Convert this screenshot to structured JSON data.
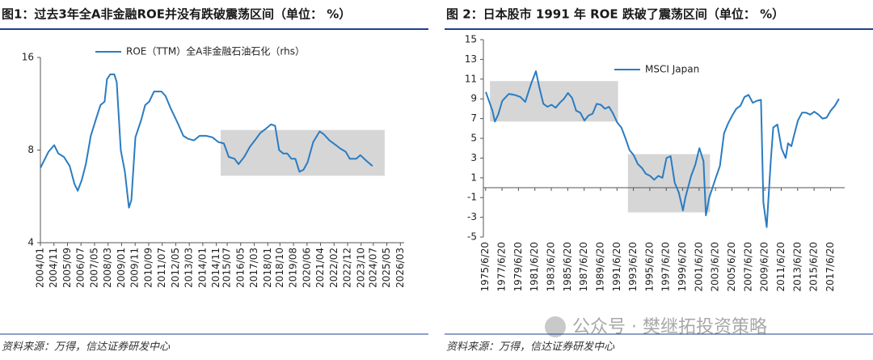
{
  "chart_data": [
    {
      "type": "line",
      "title": "图1：过去3年全A非金融ROE并没有跌破震荡区间（单位： %）",
      "source": "资料来源：万得，信达证券研发中心",
      "log_y": true,
      "legend": "top",
      "xlim": [
        2004,
        2026.4
      ],
      "ylim": [
        4,
        16
      ],
      "yticks": [
        4,
        8,
        16
      ],
      "xticks": [
        {
          "value": 2004.0,
          "label": "2004/01"
        },
        {
          "value": 2004.833,
          "label": "2004/11"
        },
        {
          "value": 2005.667,
          "label": "2005/09"
        },
        {
          "value": 2006.5,
          "label": "2006/07"
        },
        {
          "value": 2007.333,
          "label": "2007/05"
        },
        {
          "value": 2008.167,
          "label": "2008/03"
        },
        {
          "value": 2009.0,
          "label": "2009/01"
        },
        {
          "value": 2009.833,
          "label": "2009/11"
        },
        {
          "value": 2010.667,
          "label": "2010/09"
        },
        {
          "value": 2011.5,
          "label": "2011/07"
        },
        {
          "value": 2012.333,
          "label": "2012/05"
        },
        {
          "value": 2013.167,
          "label": "2013/03"
        },
        {
          "value": 2014.0,
          "label": "2014/01"
        },
        {
          "value": 2014.833,
          "label": "2014/11"
        },
        {
          "value": 2015.5,
          "label": "2015/07"
        },
        {
          "value": 2016.333,
          "label": "2016/05"
        },
        {
          "value": 2017.167,
          "label": "2017/03"
        },
        {
          "value": 2018.0,
          "label": "2018/01"
        },
        {
          "value": 2018.75,
          "label": "2018/10"
        },
        {
          "value": 2019.583,
          "label": "2019/08"
        },
        {
          "value": 2020.417,
          "label": "2020/06"
        },
        {
          "value": 2021.25,
          "label": "2021/04"
        },
        {
          "value": 2022.083,
          "label": "2022/02"
        },
        {
          "value": 2022.917,
          "label": "2022/12"
        },
        {
          "value": 2023.75,
          "label": "2023/10"
        },
        {
          "value": 2024.5,
          "label": "2024/07"
        },
        {
          "value": 2025.333,
          "label": "2025/05"
        },
        {
          "value": 2026.167,
          "label": "2026/03"
        }
      ],
      "highlights": [
        {
          "x": [
            2015.1,
            2025.2
          ],
          "y": [
            6.6,
            9.3
          ]
        }
      ],
      "x": [
        2004.0,
        2004.5,
        2004.85,
        2005.1,
        2005.45,
        2005.8,
        2006.1,
        2006.3,
        2006.55,
        2006.8,
        2007.1,
        2007.45,
        2007.7,
        2007.95,
        2008.1,
        2008.3,
        2008.55,
        2008.7,
        2008.95,
        2009.2,
        2009.45,
        2009.6,
        2009.85,
        2010.2,
        2010.45,
        2010.7,
        2011.0,
        2011.45,
        2011.7,
        2012.0,
        2012.45,
        2012.8,
        2013.1,
        2013.45,
        2013.8,
        2014.2,
        2014.6,
        2014.95,
        2015.3,
        2015.6,
        2015.95,
        2016.2,
        2016.55,
        2016.9,
        2017.2,
        2017.55,
        2017.9,
        2018.2,
        2018.45,
        2018.7,
        2018.95,
        2019.2,
        2019.45,
        2019.7,
        2019.95,
        2020.2,
        2020.45,
        2020.8,
        2021.2,
        2021.45,
        2021.8,
        2022.2,
        2022.45,
        2022.8,
        2023.05,
        2023.45,
        2023.7,
        2024.05,
        2024.45
      ],
      "series": [
        {
          "name": "ROE（TTM）全A非金融石油石化（rhs）",
          "color": "#2a7cc2",
          "values": [
            7.0,
            7.9,
            8.3,
            7.8,
            7.6,
            7.1,
            6.2,
            5.9,
            6.4,
            7.2,
            8.9,
            10.2,
            11.2,
            11.5,
            13.6,
            14.1,
            14.1,
            13.3,
            8.0,
            6.8,
            5.2,
            5.5,
            8.8,
            10.0,
            11.2,
            11.5,
            12.4,
            12.4,
            12.0,
            11.0,
            9.8,
            8.9,
            8.7,
            8.6,
            8.9,
            8.9,
            8.8,
            8.5,
            8.4,
            7.6,
            7.5,
            7.2,
            7.6,
            8.2,
            8.6,
            9.1,
            9.4,
            9.7,
            9.6,
            8.0,
            7.8,
            7.8,
            7.5,
            7.5,
            6.8,
            6.9,
            7.3,
            8.5,
            9.2,
            9.0,
            8.6,
            8.3,
            8.1,
            7.9,
            7.5,
            7.5,
            7.7,
            7.4,
            7.1
          ]
        }
      ]
    },
    {
      "type": "line",
      "title": "图 2：日本股市 1991 年 ROE 跌破了震荡区间（单位： %）",
      "source": "资料来源：万得，信达证券研发中心",
      "log_y": false,
      "legend": "upper left",
      "xlim": [
        1975.2,
        2019.2
      ],
      "ylim": [
        -5,
        15
      ],
      "yticks": [
        -5,
        -3,
        -1,
        1,
        3,
        5,
        7,
        9,
        11,
        13,
        15
      ],
      "xticks": [
        {
          "value": 1975.47,
          "label": "1975/6/20"
        },
        {
          "value": 1977.47,
          "label": "1977/6/20"
        },
        {
          "value": 1979.47,
          "label": "1979/6/20"
        },
        {
          "value": 1981.47,
          "label": "1981/6/20"
        },
        {
          "value": 1983.47,
          "label": "1983/6/20"
        },
        {
          "value": 1985.47,
          "label": "1985/6/20"
        },
        {
          "value": 1987.47,
          "label": "1987/6/20"
        },
        {
          "value": 1989.47,
          "label": "1989/6/20"
        },
        {
          "value": 1991.47,
          "label": "1991/6/20"
        },
        {
          "value": 1993.47,
          "label": "1993/6/20"
        },
        {
          "value": 1995.47,
          "label": "1995/6/20"
        },
        {
          "value": 1997.47,
          "label": "1997/6/20"
        },
        {
          "value": 1999.47,
          "label": "1999/6/20"
        },
        {
          "value": 2001.47,
          "label": "2001/6/20"
        },
        {
          "value": 2003.47,
          "label": "2003/6/20"
        },
        {
          "value": 2005.47,
          "label": "2005/6/20"
        },
        {
          "value": 2007.47,
          "label": "2007/6/20"
        },
        {
          "value": 2009.47,
          "label": "2009/6/20"
        },
        {
          "value": 2011.47,
          "label": "2011/6/20"
        },
        {
          "value": 2013.47,
          "label": "2013/6/20"
        },
        {
          "value": 2015.47,
          "label": "2015/6/20"
        },
        {
          "value": 2017.47,
          "label": "2017/6/20"
        }
      ],
      "highlights": [
        {
          "x": [
            1976.0,
            1991.6
          ],
          "y": [
            6.7,
            10.8
          ]
        },
        {
          "x": [
            1992.8,
            2002.8
          ],
          "y": [
            -2.5,
            3.4
          ]
        }
      ],
      "x": [
        1975.5,
        1976.3,
        1976.6,
        1977,
        1977.5,
        1978.3,
        1979,
        1979.7,
        1980.3,
        1981,
        1981.6,
        1982,
        1982.5,
        1983,
        1983.5,
        1984,
        1984.5,
        1985,
        1985.5,
        1986,
        1986.5,
        1987,
        1987.5,
        1988,
        1988.5,
        1989,
        1989.5,
        1990,
        1990.5,
        1991,
        1991.5,
        1992,
        1992.5,
        1993,
        1993.5,
        1994,
        1994.5,
        1995,
        1995.5,
        1996,
        1996.5,
        1997,
        1997.5,
        1998,
        1998.5,
        1999,
        1999.5,
        1999.8,
        2000.5,
        2001,
        2001.5,
        2002,
        2002.3,
        2002.7,
        2003.5,
        2004,
        2004.5,
        2005,
        2005.5,
        2006,
        2006.5,
        2007,
        2007.5,
        2008,
        2008.5,
        2009,
        2009.3,
        2009.7,
        2010.2,
        2010.5,
        2011,
        2011.5,
        2012,
        2012.3,
        2012.7,
        2013,
        2013.5,
        2014,
        2014.5,
        2015,
        2015.5,
        2016,
        2016.5,
        2017,
        2017.5,
        2018,
        2018.5
      ],
      "series": [
        {
          "name": "MSCI Japan",
          "color": "#2a7cc2",
          "values": [
            9.7,
            7.8,
            6.7,
            7.4,
            8.8,
            9.5,
            9.4,
            9.2,
            8.7,
            10.5,
            11.8,
            10.2,
            8.5,
            8.2,
            8.4,
            8.1,
            8.6,
            9.0,
            9.6,
            9.1,
            7.8,
            7.6,
            6.8,
            7.3,
            7.5,
            8.5,
            8.4,
            8.0,
            8.2,
            7.5,
            6.6,
            6.1,
            5.0,
            3.8,
            3.3,
            2.4,
            2.0,
            1.4,
            1.2,
            0.8,
            1.2,
            1.0,
            3.0,
            3.2,
            0.5,
            -0.5,
            -2.3,
            -1.0,
            1.2,
            2.3,
            4.0,
            2.7,
            -2.8,
            -1.0,
            1.0,
            2.2,
            5.5,
            6.5,
            7.3,
            8.0,
            8.3,
            9.2,
            9.4,
            8.6,
            8.8,
            8.9,
            -1.5,
            -4.0,
            2.8,
            6.1,
            6.4,
            4.0,
            3.0,
            4.5,
            4.2,
            5.2,
            6.8,
            7.6,
            7.6,
            7.4,
            7.7,
            7.4,
            7.0,
            7.1,
            7.8,
            8.3,
            9.0
          ]
        }
      ]
    }
  ],
  "watermark": "公众号 · 樊继拓投资策略"
}
